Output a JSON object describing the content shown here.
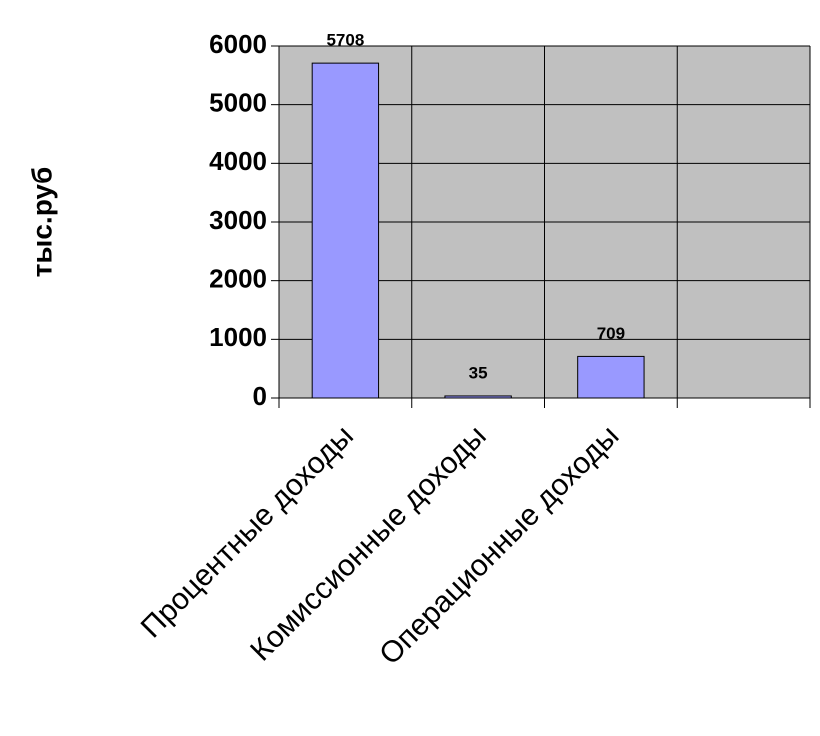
{
  "chart_data": {
    "type": "bar",
    "y_label": "тыс.руб",
    "categories": [
      "Процентные доходы",
      "Комиссионные доходы",
      "Операционные доходы",
      null
    ],
    "values": [
      5708,
      35,
      709,
      null
    ],
    "color": "#9999ff",
    "ylim": [
      0,
      6000
    ],
    "yticks": [
      0,
      1000,
      2000,
      3000,
      4000,
      5000,
      6000
    ],
    "grid": true,
    "value_labels": [
      "5708",
      "35",
      "709",
      null
    ]
  }
}
